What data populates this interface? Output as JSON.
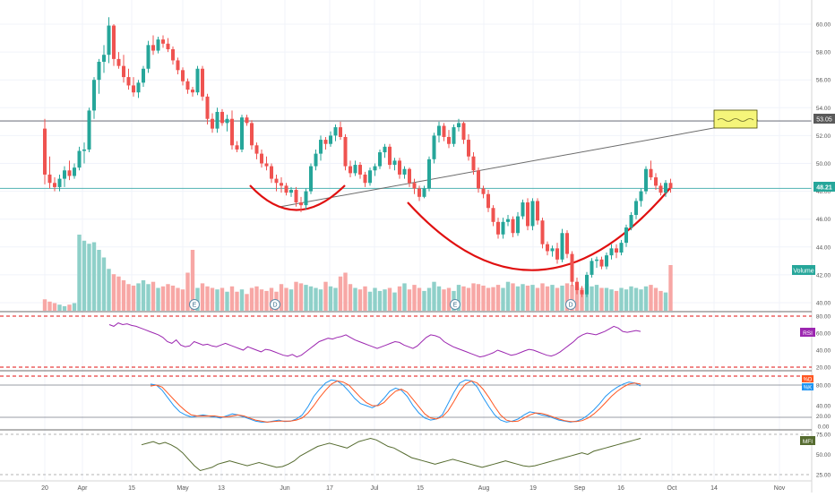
{
  "colors": {
    "up": "#26a69a",
    "down": "#ef5350",
    "vol_up": "#8fd0c9",
    "vol_down": "#f7a7a5",
    "rsi": "#9c27b0",
    "stoch_k": "#2196f3",
    "stoch_d": "#ff5722",
    "mfi": "#556b2f",
    "cup": "#e01010",
    "resistance": "#787b86",
    "current_line": "#4fb3b3",
    "alert": "#f5f57a"
  },
  "main_panel": {
    "price_axis_ticks": [
      "60.00",
      "58.00",
      "56.00",
      "54.00",
      "52.00",
      "50.00",
      "48.00",
      "46.00",
      "44.00",
      "42.00",
      "40.00"
    ],
    "resistance_label": "53.05",
    "current_label": "48.21",
    "volume_label": "Volume",
    "earnings_markers": [
      "E",
      "D",
      "E",
      "D"
    ]
  },
  "rsi_panel": {
    "label": "RSI",
    "ticks": [
      "80.00",
      "60.00",
      "40.00",
      "20.00"
    ]
  },
  "stoch_panel": {
    "label_k": "%D",
    "label_d": "%K",
    "ticks": [
      "80.00",
      "40.00",
      "20.00",
      "0.00"
    ]
  },
  "mfi_panel": {
    "label": "MFI",
    "ticks": [
      "75.00",
      "50.00",
      "25.00"
    ]
  },
  "time_axis": [
    "20",
    "Apr",
    "15",
    "May",
    "13",
    "Jun",
    "17",
    "Jul",
    "15",
    "Aug",
    "19",
    "Sep",
    "16",
    "Oct",
    "14",
    "Nov"
  ],
  "chart_data": {
    "type": "candlestick",
    "y_range": [
      39.5,
      61
    ],
    "resistance_price": 53.05,
    "current_price": 48.21,
    "candles_ohlc": [
      [
        52.5,
        53.2,
        48.5,
        49.2
      ],
      [
        49.2,
        50.5,
        48.2,
        48.6
      ],
      [
        48.6,
        49.0,
        48.0,
        48.3
      ],
      [
        48.3,
        49.2,
        48.0,
        48.9
      ],
      [
        48.9,
        49.8,
        48.3,
        49.5
      ],
      [
        49.5,
        50.2,
        48.8,
        49.1
      ],
      [
        49.1,
        50.0,
        48.9,
        49.7
      ],
      [
        49.7,
        51.2,
        49.5,
        50.9
      ],
      [
        50.9,
        51.5,
        50.0,
        51.0
      ],
      [
        51.0,
        54.0,
        50.8,
        53.8
      ],
      [
        53.8,
        56.2,
        53.2,
        56.0
      ],
      [
        56.0,
        57.5,
        55.0,
        57.3
      ],
      [
        57.3,
        58.5,
        56.5,
        57.8
      ],
      [
        57.8,
        60.5,
        57.2,
        59.9
      ],
      [
        59.9,
        60.0,
        57.0,
        57.5
      ],
      [
        57.5,
        58.0,
        56.8,
        57.0
      ],
      [
        57.0,
        57.8,
        55.8,
        56.2
      ],
      [
        56.2,
        56.8,
        55.3,
        55.6
      ],
      [
        55.6,
        56.2,
        54.8,
        55.1
      ],
      [
        55.1,
        56.0,
        54.7,
        55.8
      ],
      [
        55.8,
        57.0,
        55.5,
        56.8
      ],
      [
        56.8,
        58.8,
        56.5,
        58.5
      ],
      [
        58.5,
        59.2,
        57.8,
        58.1
      ],
      [
        58.1,
        59.1,
        57.9,
        58.9
      ],
      [
        58.9,
        59.2,
        58.3,
        58.6
      ],
      [
        58.6,
        59.0,
        58.0,
        58.2
      ],
      [
        58.2,
        58.4,
        57.1,
        57.4
      ],
      [
        57.4,
        57.6,
        56.4,
        56.7
      ],
      [
        56.7,
        56.9,
        55.6,
        55.9
      ],
      [
        55.9,
        56.1,
        55.0,
        55.3
      ],
      [
        55.3,
        55.5,
        54.8,
        55.1
      ],
      [
        55.1,
        57.0,
        54.9,
        56.8
      ],
      [
        56.8,
        57.0,
        54.5,
        54.8
      ],
      [
        54.8,
        55.0,
        52.8,
        53.2
      ],
      [
        53.2,
        53.6,
        52.2,
        52.5
      ],
      [
        52.5,
        54.0,
        52.2,
        53.7
      ],
      [
        53.7,
        53.9,
        52.7,
        52.9
      ],
      [
        52.9,
        53.5,
        52.3,
        53.2
      ],
      [
        53.2,
        53.8,
        51.0,
        51.3
      ],
      [
        51.3,
        51.6,
        50.8,
        51.0
      ],
      [
        51.0,
        53.5,
        50.8,
        53.3
      ],
      [
        53.3,
        53.5,
        52.7,
        52.9
      ],
      [
        52.9,
        53.1,
        51.0,
        51.3
      ],
      [
        51.3,
        51.5,
        50.3,
        50.7
      ],
      [
        50.7,
        51.0,
        49.7,
        50.0
      ],
      [
        50.0,
        50.5,
        49.5,
        49.8
      ],
      [
        49.8,
        50.0,
        48.6,
        48.9
      ],
      [
        48.9,
        49.2,
        48.0,
        48.6
      ],
      [
        48.6,
        49.0,
        47.9,
        48.4
      ],
      [
        48.4,
        48.6,
        47.7,
        47.9
      ],
      [
        47.9,
        48.3,
        47.6,
        48.1
      ],
      [
        48.1,
        48.3,
        46.9,
        47.2
      ],
      [
        47.2,
        47.6,
        46.5,
        47.0
      ],
      [
        47.0,
        48.2,
        46.7,
        48.0
      ],
      [
        48.0,
        50.0,
        47.8,
        49.8
      ],
      [
        49.8,
        51.0,
        49.5,
        50.7
      ],
      [
        50.7,
        52.0,
        50.2,
        51.7
      ],
      [
        51.7,
        51.9,
        51.0,
        51.4
      ],
      [
        51.4,
        52.3,
        51.2,
        52.0
      ],
      [
        52.0,
        52.8,
        51.6,
        52.6
      ],
      [
        52.6,
        53.0,
        51.7,
        51.9
      ],
      [
        51.9,
        52.1,
        49.5,
        49.8
      ],
      [
        49.8,
        50.2,
        49.0,
        49.3
      ],
      [
        49.3,
        50.2,
        49.1,
        49.9
      ],
      [
        49.9,
        50.1,
        48.9,
        49.2
      ],
      [
        49.2,
        49.4,
        48.3,
        48.6
      ],
      [
        48.6,
        49.7,
        48.4,
        49.5
      ],
      [
        49.5,
        50.0,
        49.1,
        49.8
      ],
      [
        49.8,
        51.0,
        49.6,
        50.8
      ],
      [
        50.8,
        51.4,
        50.4,
        51.2
      ],
      [
        51.2,
        51.4,
        49.6,
        49.9
      ],
      [
        49.9,
        50.4,
        49.5,
        50.2
      ],
      [
        50.2,
        50.4,
        48.9,
        49.2
      ],
      [
        49.2,
        49.8,
        48.9,
        49.6
      ],
      [
        49.6,
        49.7,
        48.3,
        48.6
      ],
      [
        48.6,
        48.9,
        47.8,
        48.2
      ],
      [
        48.2,
        48.4,
        47.3,
        47.6
      ],
      [
        47.6,
        48.4,
        47.5,
        48.2
      ],
      [
        48.2,
        50.5,
        48.0,
        50.3
      ],
      [
        50.3,
        52.2,
        50.0,
        52.0
      ],
      [
        52.0,
        53.0,
        51.5,
        52.7
      ],
      [
        52.7,
        52.9,
        51.6,
        51.9
      ],
      [
        51.9,
        52.4,
        51.1,
        51.4
      ],
      [
        51.4,
        52.8,
        51.2,
        52.6
      ],
      [
        52.6,
        53.2,
        52.3,
        52.9
      ],
      [
        52.9,
        53.0,
        51.4,
        51.7
      ],
      [
        51.7,
        52.1,
        50.2,
        50.5
      ],
      [
        50.5,
        50.8,
        49.2,
        49.5
      ],
      [
        49.5,
        49.7,
        47.9,
        48.2
      ],
      [
        48.2,
        48.4,
        47.5,
        47.8
      ],
      [
        47.8,
        48.1,
        46.5,
        46.8
      ],
      [
        46.8,
        47.0,
        45.5,
        45.8
      ],
      [
        45.8,
        46.1,
        44.6,
        44.9
      ],
      [
        44.9,
        46.1,
        44.6,
        45.8
      ],
      [
        45.8,
        46.3,
        45.5,
        46.0
      ],
      [
        46.0,
        46.2,
        44.7,
        45.0
      ],
      [
        45.0,
        46.5,
        44.8,
        46.2
      ],
      [
        46.2,
        47.4,
        46.0,
        47.2
      ],
      [
        47.2,
        47.5,
        45.2,
        45.5
      ],
      [
        45.5,
        47.5,
        45.2,
        47.3
      ],
      [
        47.3,
        47.5,
        45.6,
        45.9
      ],
      [
        45.9,
        46.1,
        43.9,
        44.2
      ],
      [
        44.2,
        44.4,
        43.4,
        43.7
      ],
      [
        43.7,
        44.1,
        43.3,
        43.9
      ],
      [
        43.9,
        44.3,
        42.8,
        43.1
      ],
      [
        43.1,
        45.3,
        42.9,
        45.0
      ],
      [
        45.0,
        45.2,
        43.2,
        43.5
      ],
      [
        43.5,
        43.7,
        41.2,
        41.5
      ],
      [
        41.5,
        41.8,
        40.6,
        40.9
      ],
      [
        40.9,
        41.2,
        40.4,
        40.6
      ],
      [
        40.6,
        42.2,
        40.4,
        42.0
      ],
      [
        42.0,
        43.2,
        41.8,
        43.0
      ],
      [
        43.0,
        43.3,
        42.5,
        43.1
      ],
      [
        43.1,
        43.3,
        42.4,
        42.6
      ],
      [
        42.6,
        43.6,
        42.4,
        43.4
      ],
      [
        43.4,
        44.2,
        43.1,
        43.9
      ],
      [
        43.9,
        44.2,
        43.2,
        43.6
      ],
      [
        43.6,
        44.5,
        43.4,
        44.3
      ],
      [
        44.3,
        45.6,
        44.0,
        45.4
      ],
      [
        45.4,
        46.5,
        45.2,
        46.3
      ],
      [
        46.3,
        47.5,
        46.0,
        47.3
      ],
      [
        47.3,
        48.2,
        46.9,
        48.0
      ],
      [
        48.0,
        49.8,
        47.8,
        49.6
      ],
      [
        49.6,
        50.2,
        48.8,
        49.0
      ],
      [
        49.0,
        49.3,
        48.1,
        48.4
      ],
      [
        48.4,
        48.6,
        47.7,
        47.9
      ],
      [
        47.9,
        48.8,
        47.6,
        48.6
      ],
      [
        48.6,
        48.9,
        47.9,
        48.21
      ]
    ],
    "volume_relative": [
      0.15,
      0.12,
      0.1,
      0.08,
      0.06,
      0.08,
      0.1,
      1.0,
      0.92,
      0.88,
      0.9,
      0.8,
      0.7,
      0.55,
      0.48,
      0.45,
      0.4,
      0.35,
      0.33,
      0.36,
      0.4,
      0.35,
      0.38,
      0.3,
      0.32,
      0.35,
      0.33,
      0.3,
      0.28,
      0.5,
      0.8,
      0.3,
      0.36,
      0.32,
      0.3,
      0.28,
      0.3,
      0.25,
      0.32,
      0.25,
      0.28,
      0.22,
      0.3,
      0.32,
      0.28,
      0.26,
      0.3,
      0.25,
      0.35,
      0.3,
      0.28,
      0.38,
      0.36,
      0.34,
      0.32,
      0.3,
      0.28,
      0.38,
      0.32,
      0.3,
      0.45,
      0.5,
      0.35,
      0.3,
      0.28,
      0.32,
      0.25,
      0.3,
      0.26,
      0.28,
      0.3,
      0.24,
      0.32,
      0.36,
      0.28,
      0.34,
      0.3,
      0.26,
      0.3,
      0.38,
      0.32,
      0.28,
      0.3,
      0.26,
      0.34,
      0.32,
      0.3,
      0.36,
      0.35,
      0.33,
      0.3,
      0.31,
      0.34,
      0.3,
      0.38,
      0.36,
      0.32,
      0.35,
      0.33,
      0.34,
      0.3,
      0.36,
      0.32,
      0.34,
      0.3,
      0.33,
      0.36,
      0.34,
      0.32,
      0.3,
      0.35,
      0.32,
      0.34,
      0.3,
      0.3,
      0.28,
      0.26,
      0.3,
      0.28,
      0.32,
      0.3,
      0.28,
      0.32,
      0.34,
      0.3,
      0.26,
      0.24,
      0.6
    ],
    "rsi": [
      70,
      68,
      72,
      70,
      71,
      69,
      68,
      66,
      64,
      62,
      60,
      58,
      55,
      50,
      48,
      52,
      46,
      44,
      45,
      50,
      48,
      46,
      47,
      45,
      44,
      46,
      48,
      46,
      44,
      42,
      40,
      44,
      42,
      40,
      38,
      41,
      40,
      38,
      36,
      34,
      33,
      35,
      32,
      34,
      38,
      42,
      46,
      50,
      52,
      54,
      53,
      55,
      56,
      58,
      55,
      52,
      50,
      48,
      46,
      44,
      42,
      44,
      46,
      48,
      50,
      49,
      46,
      44,
      42,
      45,
      50,
      55,
      58,
      57,
      55,
      50,
      47,
      44,
      42,
      40,
      38,
      36,
      34,
      32,
      33,
      35,
      37,
      40,
      38,
      36,
      34,
      35,
      37,
      39,
      41,
      40,
      38,
      36,
      34,
      33,
      35,
      38,
      42,
      46,
      50,
      55,
      58,
      60,
      59,
      58,
      60,
      62,
      65,
      68,
      66,
      62,
      61,
      62,
      63,
      62
    ],
    "stoch_k": [
      82,
      80,
      70,
      55,
      40,
      28,
      22,
      18,
      20,
      22,
      20,
      18,
      16,
      20,
      24,
      22,
      18,
      14,
      10,
      8,
      8,
      10,
      12,
      9,
      10,
      14,
      22,
      38,
      58,
      72,
      84,
      90,
      88,
      80,
      68,
      54,
      44,
      40,
      36,
      42,
      54,
      68,
      74,
      70,
      58,
      40,
      26,
      16,
      12,
      14,
      22,
      44,
      66,
      84,
      90,
      88,
      76,
      56,
      38,
      22,
      12,
      8,
      10,
      14,
      22,
      28,
      26,
      22,
      20,
      16,
      12,
      10,
      8,
      10,
      14,
      22,
      32,
      44,
      58,
      68,
      76,
      82,
      86,
      84,
      78
    ],
    "stoch_d": [
      78,
      80,
      76,
      64,
      52,
      40,
      30,
      22,
      20,
      20,
      20,
      20,
      18,
      18,
      20,
      22,
      20,
      16,
      12,
      10,
      8,
      9,
      10,
      10,
      10,
      12,
      16,
      26,
      40,
      56,
      70,
      82,
      88,
      86,
      80,
      68,
      56,
      46,
      40,
      40,
      46,
      58,
      68,
      72,
      66,
      52,
      38,
      24,
      16,
      14,
      18,
      30,
      48,
      68,
      82,
      88,
      84,
      72,
      56,
      38,
      22,
      12,
      9,
      10,
      16,
      22,
      26,
      25,
      22,
      18,
      14,
      11,
      9,
      9,
      11,
      16,
      24,
      34,
      46,
      58,
      68,
      76,
      82,
      84,
      82
    ],
    "mfi": [
      62,
      64,
      66,
      63,
      65,
      62,
      58,
      52,
      44,
      36,
      30,
      32,
      34,
      38,
      40,
      42,
      40,
      38,
      36,
      38,
      40,
      38,
      36,
      34,
      35,
      38,
      42,
      48,
      52,
      56,
      60,
      62,
      64,
      62,
      60,
      58,
      62,
      66,
      68,
      70,
      68,
      64,
      60,
      58,
      54,
      50,
      46,
      44,
      42,
      40,
      38,
      40,
      42,
      44,
      42,
      40,
      38,
      36,
      34,
      36,
      38,
      40,
      42,
      40,
      38,
      36,
      35,
      36,
      38,
      40,
      42,
      44,
      46,
      48,
      50,
      52,
      50,
      54,
      56,
      58,
      60,
      62,
      64,
      66,
      68,
      70
    ]
  }
}
